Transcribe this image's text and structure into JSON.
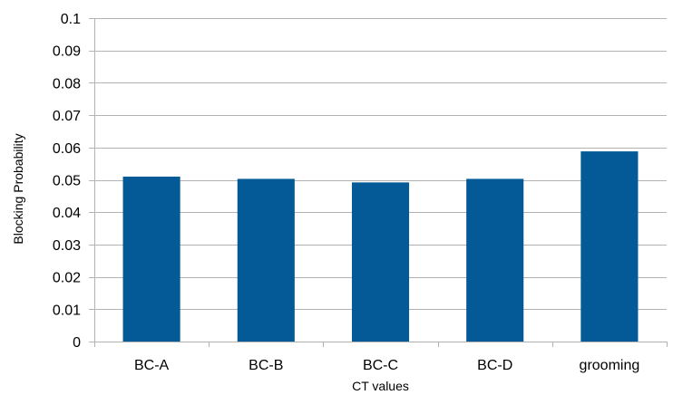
{
  "chart_data": {
    "type": "bar",
    "categories": [
      "BC-A",
      "BC-B",
      "BC-C",
      "BC-D",
      "grooming"
    ],
    "values": [
      0.051,
      0.0503,
      0.0492,
      0.0503,
      0.0588
    ],
    "xlabel": "CT values",
    "ylabel": "Blocking Probability",
    "ylim": [
      0,
      0.1
    ],
    "yticks": [
      "0",
      "0.01",
      "0.02",
      "0.03",
      "0.04",
      "0.05",
      "0.06",
      "0.07",
      "0.08",
      "0.09",
      "0.1"
    ],
    "grid": "horizontal",
    "legend": "none",
    "bar_color": "#045a96",
    "grid_color": "#b3b3b3",
    "axis_color": "#b3b3b3"
  }
}
